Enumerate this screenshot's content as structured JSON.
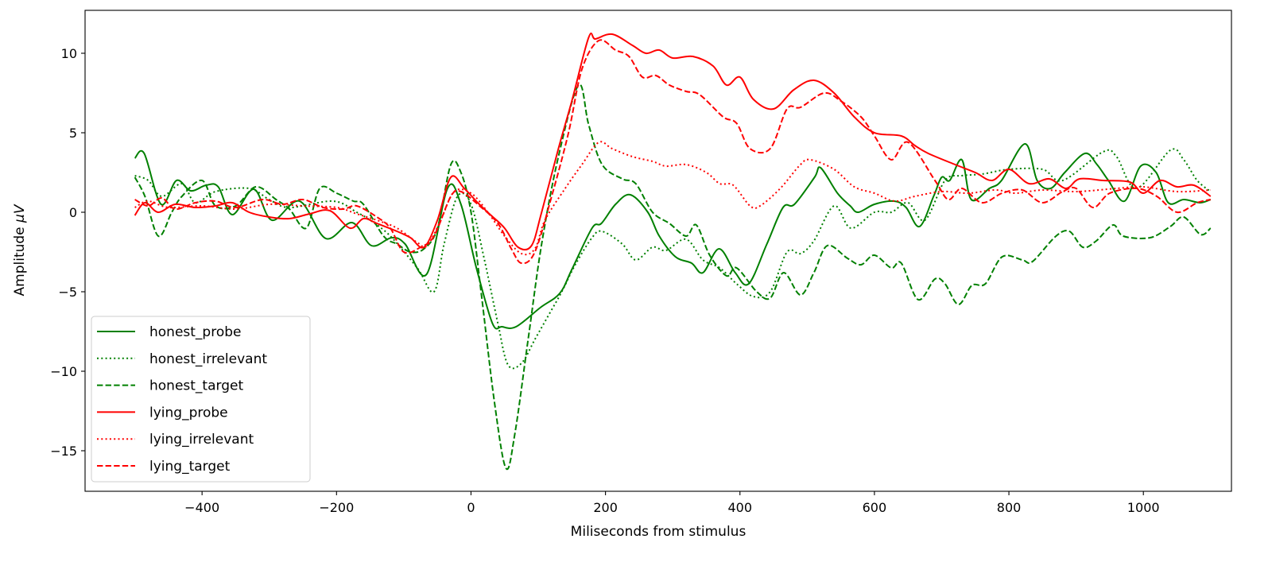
{
  "chart_data": {
    "type": "line",
    "title": "",
    "xlabel": "Miliseconds from stimulus",
    "ylabel_prefix": "Amplitude ",
    "ylabel_unit": "μV",
    "xlim": [
      -574,
      1131
    ],
    "ylim": [
      -17.55,
      12.7
    ],
    "xticks": [
      -400,
      -200,
      0,
      200,
      400,
      600,
      800,
      1000
    ],
    "xtick_labels": [
      "−400",
      "−200",
      "0",
      "200",
      "400",
      "600",
      "800",
      "1000"
    ],
    "yticks": [
      -15,
      -10,
      -5,
      0,
      5,
      10
    ],
    "ytick_labels": [
      "−15",
      "−10",
      "−5",
      "0",
      "5",
      "10"
    ],
    "grid": false,
    "legend_position": "lower-left",
    "colors": {
      "honest": "#008000",
      "lying": "#ff0000"
    },
    "series": [
      {
        "name": "honest_probe",
        "color": "#008000",
        "style": "solid",
        "x": [
          -500,
          -486,
          -461,
          -438,
          -417,
          -394,
          -376,
          -355,
          -323,
          -296,
          -255,
          -216,
          -177,
          -148,
          -118,
          -98,
          -66,
          -35,
          -15,
          8,
          32,
          46,
          67,
          103,
          132,
          150,
          180,
          194,
          215,
          237,
          263,
          280,
          304,
          328,
          345,
          369,
          393,
          413,
          440,
          464,
          481,
          511,
          520,
          545,
          564,
          576,
          600,
          629,
          647,
          667,
          688,
          700,
          712,
          730,
          744,
          771,
          789,
          824,
          842,
          862,
          883,
          913,
          931,
          948,
          972,
          996,
          1019,
          1037,
          1060,
          1084,
          1100
        ],
        "y": [
          3.4,
          3.7,
          0.5,
          2.0,
          1.35,
          1.7,
          1.6,
          -0.15,
          1.45,
          -0.5,
          0.7,
          -1.65,
          -0.65,
          -2.1,
          -1.6,
          -2.0,
          -3.9,
          1.5,
          0.5,
          -3.5,
          -7.0,
          -7.2,
          -7.2,
          -6.0,
          -5.1,
          -3.6,
          -1.0,
          -0.7,
          0.5,
          1.1,
          0,
          -1.5,
          -2.8,
          -3.2,
          -3.8,
          -2.3,
          -3.8,
          -4.5,
          -2.0,
          0.3,
          0.5,
          2.2,
          2.8,
          1.2,
          0.4,
          0,
          0.5,
          0.7,
          0.3,
          -0.9,
          1.0,
          2.2,
          2.0,
          3.3,
          0.8,
          1.5,
          2.0,
          4.3,
          2.0,
          1.5,
          2.5,
          3.7,
          3.0,
          2.0,
          0.7,
          2.9,
          2.5,
          0.6,
          0.8,
          0.6,
          0.8
        ]
      },
      {
        "name": "honest_irrelevant",
        "color": "#008000",
        "style": "dotted",
        "x": [
          -500,
          -480,
          -460,
          -430,
          -410,
          -380,
          -330,
          -300,
          -270,
          -205,
          -170,
          -150,
          -120,
          -80,
          -55,
          -40,
          -20,
          0,
          20,
          40,
          55,
          75,
          95,
          115,
          135,
          155,
          180,
          195,
          225,
          245,
          270,
          290,
          320,
          345,
          370,
          395,
          420,
          445,
          470,
          490,
          510,
          540,
          565,
          600,
          625,
          650,
          675,
          705,
          730,
          760,
          800,
          850,
          880,
          940,
          960,
          990,
          1040,
          1060,
          1080,
          1100
        ],
        "y": [
          2.3,
          2.0,
          1.0,
          1.8,
          0.6,
          1.3,
          1.5,
          0.8,
          0.3,
          0.7,
          0,
          -0.5,
          -1.5,
          -3.5,
          -5.0,
          -2.0,
          1.0,
          0.5,
          -3.0,
          -7.0,
          -9.6,
          -9.5,
          -8.0,
          -6.5,
          -5.0,
          -3.3,
          -1.6,
          -1.2,
          -2.0,
          -3.0,
          -2.2,
          -2.4,
          -1.7,
          -3.0,
          -3.5,
          -4.5,
          -5.3,
          -5.0,
          -2.5,
          -2.6,
          -1.8,
          0.4,
          -1.0,
          0,
          0,
          0.6,
          -0.5,
          2.0,
          2.3,
          2.4,
          2.7,
          2.7,
          2.0,
          3.8,
          3.5,
          1.5,
          3.9,
          3.3,
          2.0,
          1.3
        ]
      },
      {
        "name": "honest_target",
        "color": "#008000",
        "style": "dashed",
        "x": [
          -500,
          -485,
          -465,
          -445,
          -430,
          -400,
          -380,
          -350,
          -320,
          -290,
          -270,
          -245,
          -225,
          -200,
          -175,
          -160,
          -130,
          -110,
          -90,
          -70,
          -50,
          -30,
          -15,
          0,
          15,
          35,
          52,
          65,
          85,
          105,
          130,
          160,
          175,
          195,
          225,
          245,
          270,
          295,
          320,
          335,
          355,
          380,
          395,
          425,
          445,
          465,
          490,
          510,
          530,
          560,
          580,
          600,
          625,
          640,
          665,
          690,
          705,
          725,
          745,
          765,
          790,
          820,
          835,
          870,
          890,
          910,
          930,
          955,
          970,
          1010,
          1040,
          1060,
          1085,
          1100
        ],
        "y": [
          2.2,
          1.0,
          -1.5,
          0,
          1.0,
          2.0,
          0.4,
          0.4,
          1.6,
          0.8,
          0.2,
          -1.0,
          1.5,
          1.2,
          0.7,
          0.5,
          -1.5,
          -2.0,
          -2.5,
          -2.3,
          -1.0,
          3.0,
          2.5,
          0,
          -5.0,
          -12.0,
          -16.1,
          -14.0,
          -8.0,
          -2.0,
          3.5,
          8.0,
          5.5,
          3.0,
          2.1,
          1.8,
          0,
          -0.7,
          -1.5,
          -0.8,
          -2.7,
          -4.0,
          -3.5,
          -5.0,
          -5.4,
          -3.8,
          -5.2,
          -3.8,
          -2.1,
          -2.9,
          -3.3,
          -2.7,
          -3.5,
          -3.2,
          -5.5,
          -4.2,
          -4.5,
          -5.8,
          -4.6,
          -4.5,
          -2.8,
          -3.0,
          -3.1,
          -1.5,
          -1.2,
          -2.2,
          -1.8,
          -0.8,
          -1.5,
          -1.6,
          -0.9,
          -0.3,
          -1.4,
          -1.0
        ]
      },
      {
        "name": "lying_probe",
        "color": "#ff0000",
        "style": "solid",
        "x": [
          -500,
          -485,
          -465,
          -440,
          -410,
          -380,
          -355,
          -330,
          -300,
          -270,
          -240,
          -210,
          -180,
          -160,
          -140,
          -110,
          -90,
          -70,
          -50,
          -30,
          -10,
          10,
          30,
          50,
          70,
          90,
          105,
          130,
          150,
          175,
          185,
          210,
          240,
          260,
          280,
          300,
          330,
          360,
          380,
          400,
          420,
          450,
          480,
          510,
          540,
          570,
          600,
          640,
          660,
          680,
          720,
          750,
          775,
          800,
          830,
          860,
          885,
          905,
          940,
          980,
          1000,
          1025,
          1050,
          1075,
          1100
        ],
        "y": [
          -0.2,
          0.6,
          0,
          0.5,
          0.3,
          0.4,
          0.6,
          0,
          -0.3,
          -0.4,
          -0.1,
          0.1,
          -1.0,
          -0.4,
          -0.7,
          -1.2,
          -1.6,
          -2.2,
          -0.5,
          2.2,
          1.5,
          0.6,
          -0.2,
          -1.0,
          -2.2,
          -2.1,
          0,
          4.0,
          7.0,
          11.0,
          10.9,
          11.2,
          10.5,
          10.0,
          10.2,
          9.7,
          9.8,
          9.2,
          8.0,
          8.5,
          7.1,
          6.5,
          7.7,
          8.3,
          7.5,
          6.0,
          5.0,
          4.8,
          4.2,
          3.7,
          3.0,
          2.5,
          2.0,
          2.7,
          1.8,
          2.1,
          1.5,
          2.1,
          2.0,
          1.9,
          1.2,
          2.0,
          1.6,
          1.7,
          1.0
        ]
      },
      {
        "name": "lying_irrelevant",
        "color": "#ff0000",
        "style": "dotted",
        "x": [
          -500,
          -480,
          -450,
          -400,
          -350,
          -300,
          -250,
          -200,
          -170,
          -140,
          -110,
          -80,
          -65,
          -45,
          -25,
          0,
          25,
          50,
          75,
          95,
          110,
          140,
          165,
          190,
          210,
          240,
          270,
          290,
          320,
          350,
          370,
          390,
          415,
          430,
          460,
          490,
          505,
          540,
          570,
          600,
          630,
          660,
          700,
          740,
          780,
          810,
          850,
          900,
          960,
          1000,
          1050,
          1100
        ],
        "y": [
          0.3,
          0.7,
          0.3,
          0.4,
          0.2,
          0.5,
          0.4,
          0.3,
          -0.1,
          -0.5,
          -1.0,
          -1.9,
          -2.1,
          -0.5,
          1.3,
          1.2,
          0,
          -1.5,
          -2.6,
          -2.3,
          -0.5,
          1.5,
          3.0,
          4.4,
          4.0,
          3.5,
          3.2,
          2.9,
          3.0,
          2.5,
          1.8,
          1.7,
          0.4,
          0.4,
          1.5,
          3.0,
          3.3,
          2.7,
          1.6,
          1.2,
          0.7,
          1.0,
          1.3,
          1.2,
          1.4,
          1.2,
          1.4,
          1.3,
          1.5,
          1.6,
          1.3,
          1.4
        ]
      },
      {
        "name": "lying_target",
        "color": "#ff0000",
        "style": "dashed",
        "x": [
          -500,
          -480,
          -460,
          -440,
          -410,
          -380,
          -350,
          -310,
          -280,
          -250,
          -220,
          -190,
          -170,
          -140,
          -120,
          -100,
          -75,
          -55,
          -30,
          -15,
          10,
          40,
          60,
          75,
          95,
          120,
          145,
          165,
          190,
          215,
          235,
          255,
          275,
          295,
          320,
          340,
          375,
          395,
          415,
          445,
          470,
          490,
          525,
          550,
          580,
          600,
          625,
          650,
          690,
          710,
          730,
          760,
          790,
          820,
          850,
          880,
          900,
          925,
          950,
          990,
          1020,
          1050,
          1080,
          1100
        ],
        "y": [
          0.8,
          0.4,
          0.9,
          0.2,
          0.6,
          0.7,
          0.3,
          0.8,
          0.5,
          0.8,
          0.3,
          0.2,
          0.4,
          -0.3,
          -1.0,
          -2.5,
          -2.2,
          -1.5,
          1.0,
          1.3,
          0.5,
          -0.7,
          -2.3,
          -3.2,
          -2.5,
          1.0,
          5.0,
          9.0,
          10.8,
          10.2,
          9.8,
          8.5,
          8.6,
          8.0,
          7.6,
          7.4,
          6.0,
          5.6,
          4.0,
          4.0,
          6.5,
          6.6,
          7.5,
          7.0,
          6.0,
          4.8,
          3.3,
          4.4,
          2.0,
          0.8,
          1.5,
          0.6,
          1.2,
          1.4,
          0.6,
          1.3,
          1.5,
          0.3,
          1.2,
          1.5,
          1.0,
          0,
          0.6,
          0.8
        ]
      }
    ]
  }
}
